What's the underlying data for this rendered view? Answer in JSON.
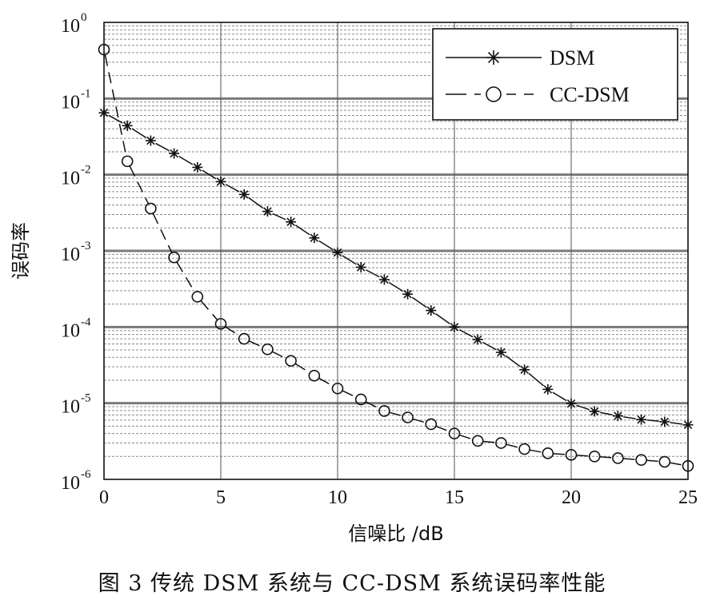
{
  "caption": "图 3   传统 DSM 系统与 CC-DSM 系统误码率性能",
  "chart_data": {
    "type": "line",
    "title": "",
    "xlabel": "信噪比 /dB",
    "ylabel": "误码率",
    "xlim": [
      0,
      25
    ],
    "ylim": [
      1e-06,
      1
    ],
    "yscale": "log",
    "grid": true,
    "legend_position": "top-right",
    "x_ticks": [
      "0",
      "5",
      "10",
      "15",
      "20",
      "25"
    ],
    "y_ticks": [
      {
        "base": "10",
        "exp": "0"
      },
      {
        "base": "10",
        "exp": "-1"
      },
      {
        "base": "10",
        "exp": "-2"
      },
      {
        "base": "10",
        "exp": "-3"
      },
      {
        "base": "10",
        "exp": "-4"
      },
      {
        "base": "10",
        "exp": "-5"
      },
      {
        "base": "10",
        "exp": "-6"
      }
    ],
    "series": [
      {
        "name": "DSM",
        "marker": "asterisk",
        "line_style": "solid",
        "x": [
          0,
          1,
          2,
          3,
          4,
          5,
          6,
          7,
          8,
          9,
          10,
          11,
          12,
          13,
          14,
          15,
          16,
          17,
          18,
          19,
          20,
          21,
          22,
          23,
          24,
          25
        ],
        "y": [
          0.065,
          0.044,
          0.028,
          0.019,
          0.0125,
          0.0081,
          0.0055,
          0.0033,
          0.0024,
          0.00148,
          0.00095,
          0.00061,
          0.00042,
          0.00027,
          0.000165,
          0.0001,
          6.85e-05,
          4.65e-05,
          2.75e-05,
          1.52e-05,
          9.9e-06,
          7.8e-06,
          6.8e-06,
          6.1e-06,
          5.7e-06,
          5.2e-06
        ]
      },
      {
        "name": "CC-DSM",
        "marker": "circle",
        "line_style": "dashed",
        "x": [
          0,
          1,
          2,
          3,
          4,
          5,
          6,
          7,
          8,
          9,
          10,
          11,
          12,
          13,
          14,
          15,
          16,
          17,
          18,
          19,
          20,
          21,
          22,
          23,
          24,
          25
        ],
        "y": [
          0.44,
          0.015,
          0.0036,
          0.00082,
          0.00025,
          0.00011,
          7e-05,
          5.1e-05,
          3.6e-05,
          2.3e-05,
          1.56e-05,
          1.12e-05,
          7.9e-06,
          6.5e-06,
          5.3e-06,
          4e-06,
          3.2e-06,
          3e-06,
          2.5e-06,
          2.2e-06,
          2.1e-06,
          2e-06,
          1.9e-06,
          1.8e-06,
          1.7e-06,
          1.5e-06
        ]
      }
    ]
  }
}
